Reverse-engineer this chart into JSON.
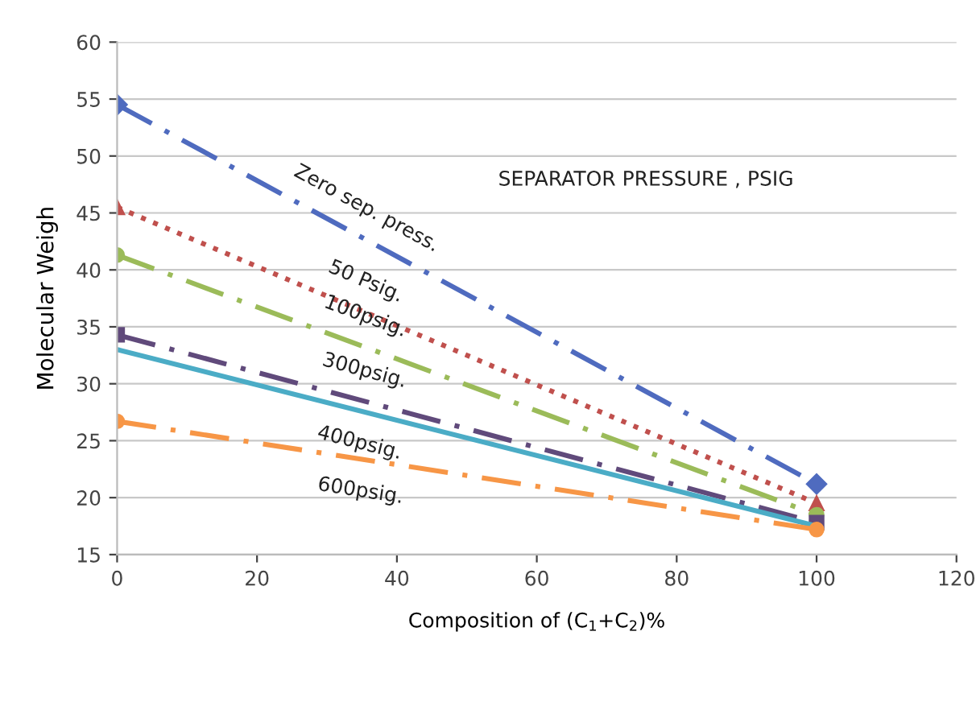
{
  "chart_data": {
    "type": "line",
    "xlabel": "Composition of (C$_{1}$+C$_{2}$)%",
    "ylabel": "Molecular Weigh",
    "annotations": [
      "SEPARATOR PRESSURE , PSIG"
    ],
    "x": [
      0,
      100
    ],
    "series": [
      {
        "name": "Zero sep. press.",
        "color": "#4f6bbf",
        "values": [
          54.5,
          21.2
        ],
        "marker": "diamond",
        "line_style": "dashed"
      },
      {
        "name": "50 Psig.",
        "color": "#c0504d",
        "values": [
          45.5,
          19.5
        ],
        "marker": "triangle",
        "line_style": "dotted"
      },
      {
        "name": "100psig.",
        "color": "#9bbb59",
        "values": [
          41.3,
          18.5
        ],
        "marker": "circle",
        "line_style": "dashed"
      },
      {
        "name": "300psig.",
        "color": "#604a7b",
        "values": [
          34.3,
          17.8
        ],
        "marker": "square",
        "line_style": "dashed"
      },
      {
        "name": "400psig.",
        "color": "#4bacc6",
        "values": [
          33,
          17.5
        ],
        "marker": "none",
        "line_style": "solid"
      },
      {
        "name": "600psig.",
        "color": "#f79646",
        "values": [
          26.7,
          17.2
        ],
        "marker": "circle",
        "line_style": "dashed"
      }
    ],
    "xlim": [
      0,
      120
    ],
    "xticks": [
      0,
      20,
      40,
      60,
      80,
      100,
      120
    ],
    "ylim": [
      15,
      60
    ],
    "yticks": [
      15,
      20,
      25,
      30,
      35,
      40,
      45,
      50,
      55,
      60
    ],
    "grid": "y",
    "legend": false
  }
}
